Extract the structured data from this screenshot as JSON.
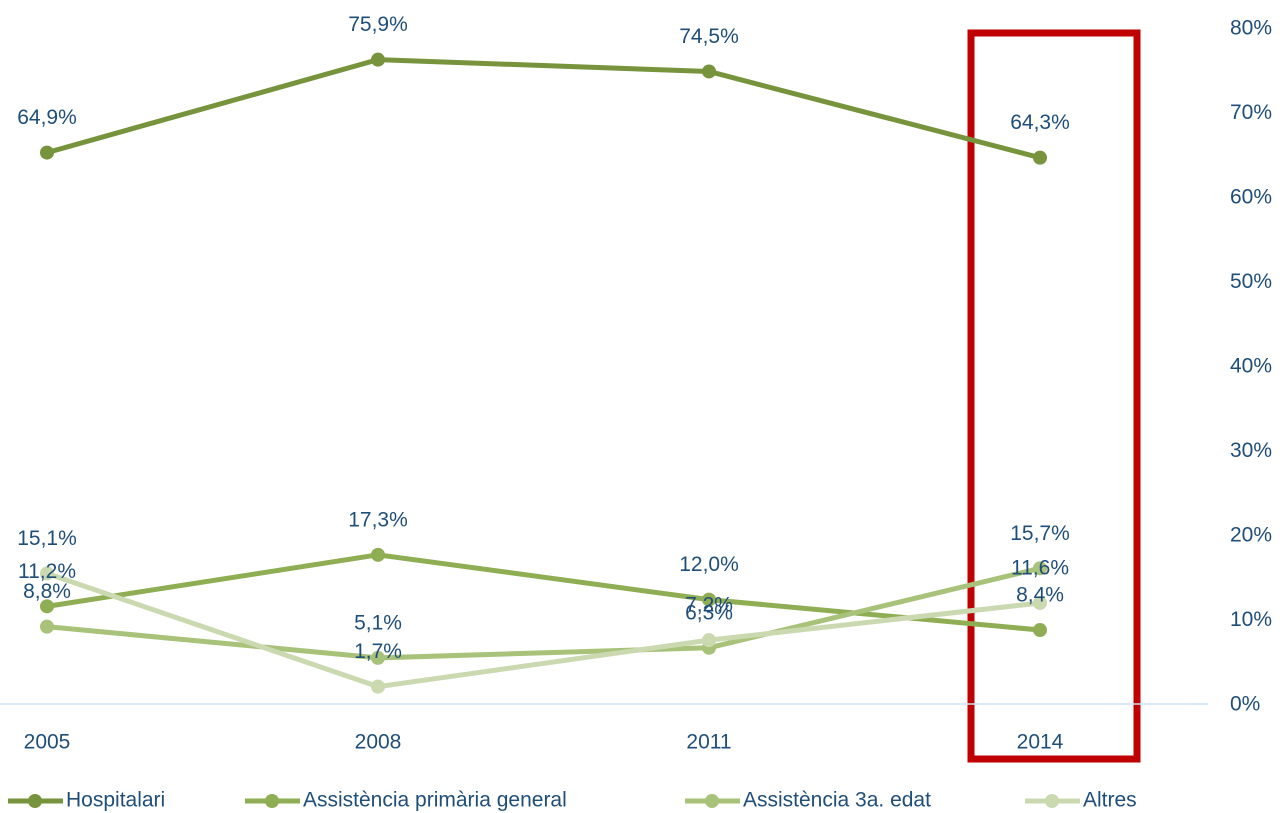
{
  "chart_data": {
    "type": "line",
    "categories": [
      "2005",
      "2008",
      "2011",
      "2014"
    ],
    "series": [
      {
        "name": "Hospitalari",
        "color": "#77933c",
        "values": [
          64.9,
          75.9,
          74.5,
          64.3
        ],
        "value_labels": [
          "64,9%",
          "75,9%",
          "74,5%",
          "64,3%"
        ]
      },
      {
        "name": "Assistència primària general",
        "color": "#8fad52",
        "values": [
          11.2,
          17.3,
          12.0,
          8.4
        ],
        "value_labels": [
          "11,2%",
          "17,3%",
          "12,0%",
          "8,4%"
        ]
      },
      {
        "name": "Assistència 3a. edat",
        "color": "#a8c27a",
        "values": [
          8.8,
          5.1,
          6.3,
          15.7
        ],
        "value_labels": [
          "8,8%",
          "5,1%",
          "6,3%",
          "15,7%"
        ]
      },
      {
        "name": "Altres",
        "color": "#cbd9b1",
        "values": [
          15.1,
          1.7,
          7.2,
          11.6
        ],
        "value_labels": [
          "15,1%",
          "1,7%",
          "7,2%",
          "11,6%"
        ]
      }
    ],
    "ylim": [
      0,
      80
    ],
    "yticks": [
      {
        "value": 0,
        "label": "0%"
      },
      {
        "value": 10,
        "label": "10%"
      },
      {
        "value": 20,
        "label": "20%"
      },
      {
        "value": 30,
        "label": "30%"
      },
      {
        "value": 40,
        "label": "40%"
      },
      {
        "value": 50,
        "label": "50%"
      },
      {
        "value": 60,
        "label": "60%"
      },
      {
        "value": 70,
        "label": "70%"
      },
      {
        "value": 80,
        "label": "80%"
      }
    ],
    "legend": "bottom"
  }
}
